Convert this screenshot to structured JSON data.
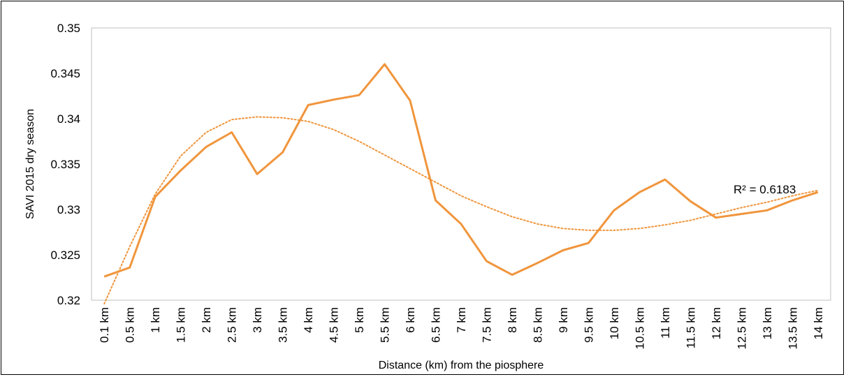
{
  "chart_data": {
    "type": "line",
    "xlabel": "Distance (km) from the piosphere",
    "ylabel": "SAVI 2015 dry season",
    "ylim": [
      0.32,
      0.35
    ],
    "yticks": [
      "0.32",
      "0.325",
      "0.33",
      "0.335",
      "0.34",
      "0.345",
      "0.35"
    ],
    "categories": [
      "0.1 km",
      "0.5 km",
      "1 km",
      "1.5 km",
      "2 km",
      "2.5 km",
      "3 km",
      "3.5 km",
      "4 km",
      "4.5 km",
      "5 km",
      "5.5 km",
      "6 km",
      "6.5 km",
      "7 km",
      "7.5 km",
      "8 km",
      "8.5 km",
      "9 km",
      "9.5 km",
      "10 km",
      "10.5 km",
      "11 km",
      "11.5 km",
      "12 km",
      "12.5 km",
      "13 km",
      "13.5 km",
      "14 km"
    ],
    "series": [
      {
        "values": [
          0.3226,
          0.3236,
          0.3314,
          0.3343,
          0.3369,
          0.3385,
          0.3339,
          0.3363,
          0.3415,
          0.3421,
          0.3426,
          0.346,
          0.342,
          0.331,
          0.3284,
          0.3243,
          0.3228,
          0.3241,
          0.3255,
          0.3263,
          0.3299,
          0.3319,
          0.3333,
          0.3309,
          0.3291,
          0.3295,
          0.3299,
          0.331,
          0.3319
        ],
        "color": "#f0953c"
      },
      {
        "trendline": true,
        "style": "dotted",
        "values": [
          0.3196,
          0.3259,
          0.3317,
          0.3359,
          0.3385,
          0.3399,
          0.3402,
          0.3401,
          0.3397,
          0.3388,
          0.3375,
          0.336,
          0.3345,
          0.333,
          0.3315,
          0.3303,
          0.3292,
          0.3284,
          0.3279,
          0.3277,
          0.3277,
          0.3279,
          0.3283,
          0.3288,
          0.3295,
          0.3302,
          0.3308,
          0.3315,
          0.3321
        ],
        "color": "#f0953c"
      }
    ],
    "annotation": "R² = 0.6183",
    "grid": false,
    "legend": "none"
  }
}
